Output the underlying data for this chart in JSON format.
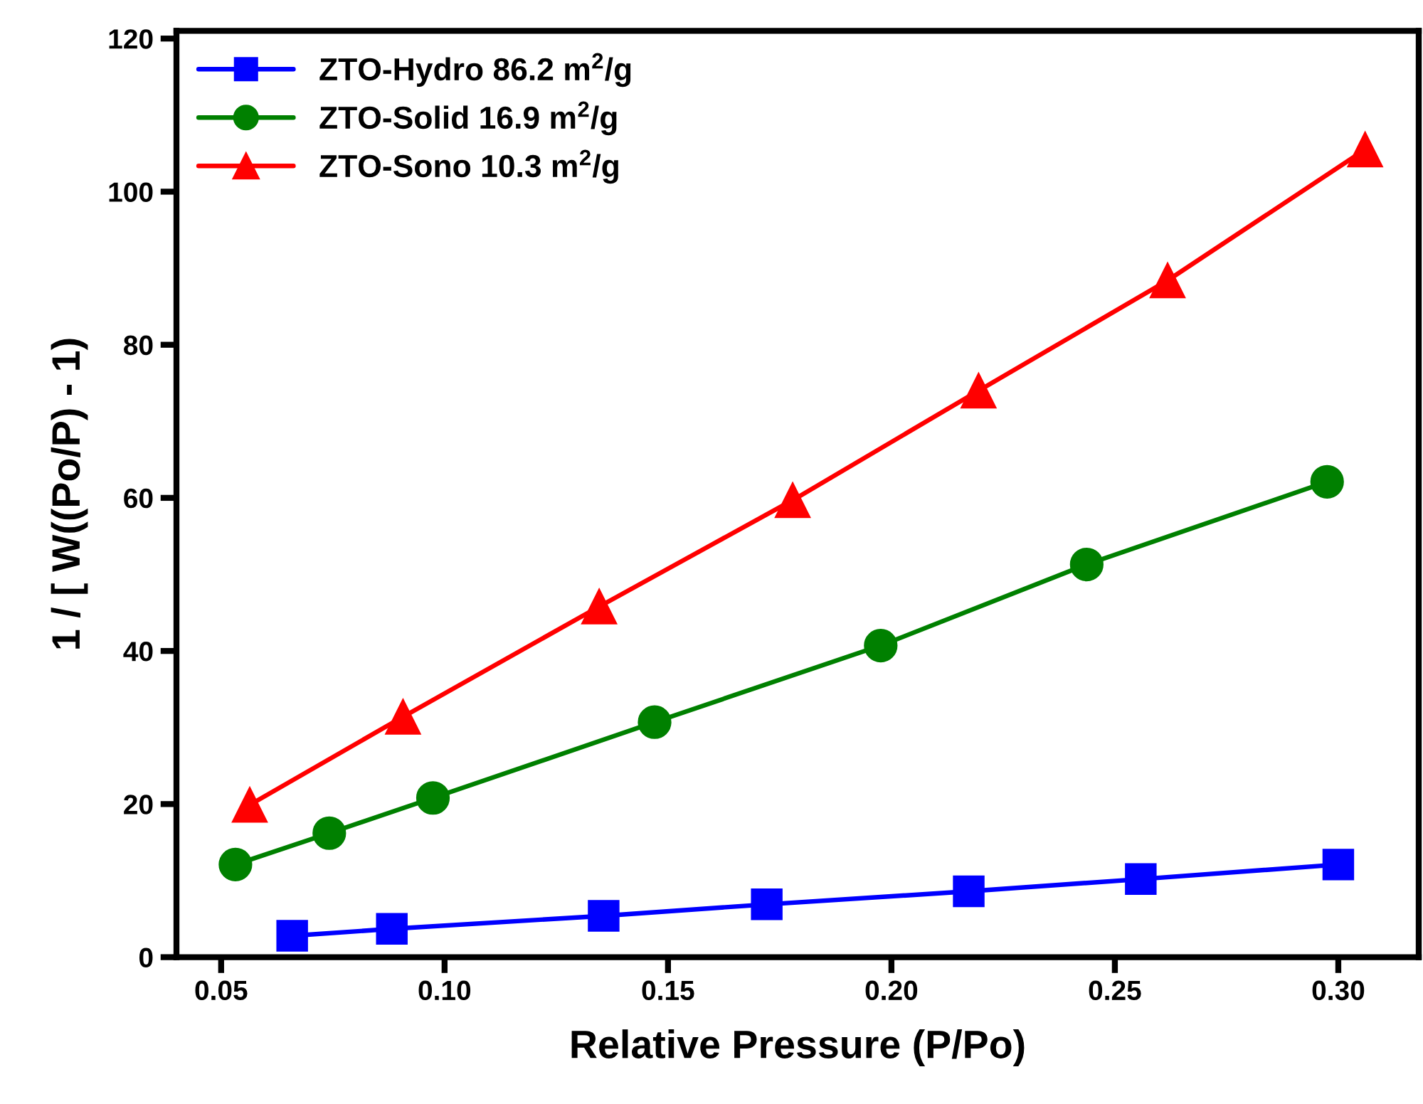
{
  "chart_data": {
    "type": "line",
    "xlabel": "Relative Pressure (P/Po)",
    "ylabel": "1 / [ W((Po/P) - 1)",
    "xlim": [
      0.04,
      0.318
    ],
    "ylim": [
      0,
      121
    ],
    "xticks": [
      {
        "value": 0.05,
        "label": "0.05"
      },
      {
        "value": 0.1,
        "label": "0.10"
      },
      {
        "value": 0.15,
        "label": "0.15"
      },
      {
        "value": 0.2,
        "label": "0.20"
      },
      {
        "value": 0.25,
        "label": "0.25"
      },
      {
        "value": 0.3,
        "label": "0.30"
      }
    ],
    "yticks": [
      0,
      20,
      40,
      60,
      80,
      100,
      120
    ],
    "grid": false,
    "legend": "top left",
    "line_style": "solid",
    "series": [
      {
        "name": "ZTO-Hydro 86.2 m$^{2}$/g",
        "color": "#0000ff",
        "marker": "square",
        "x": [
          0.0659,
          0.0882,
          0.1356,
          0.1721,
          0.2173,
          0.2558,
          0.3
        ],
        "values": [
          2.8,
          3.7,
          5.4,
          6.9,
          8.6,
          10.2,
          12.1
        ]
      },
      {
        "name": "ZTO-Solid 16.9 m$^{2}$/g",
        "color": "#008000",
        "marker": "circle",
        "x": [
          0.0532,
          0.0742,
          0.0974,
          0.147,
          0.1976,
          0.2437,
          0.2975
        ],
        "values": [
          12.1,
          16.2,
          20.8,
          30.7,
          40.7,
          51.3,
          62.1
        ]
      },
      {
        "name": "ZTO-Sono 10.3 m$^{2}$/g",
        "color": "#ff0000",
        "marker": "triangle",
        "x": [
          0.0564,
          0.0907,
          0.1346,
          0.1779,
          0.2195,
          0.2618,
          0.306
        ],
        "values": [
          19.9,
          31.4,
          45.8,
          59.7,
          74.0,
          88.4,
          105.5
        ]
      }
    ]
  }
}
